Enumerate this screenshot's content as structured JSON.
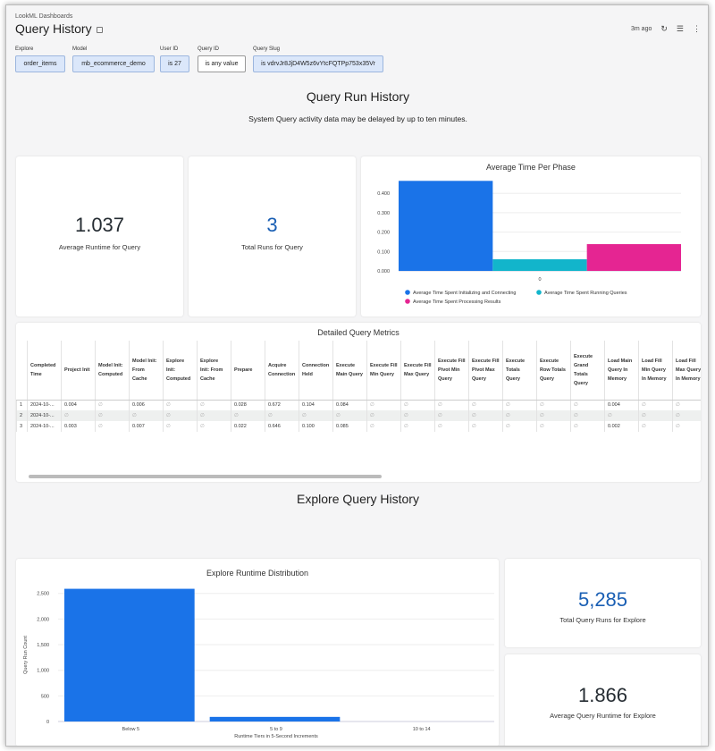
{
  "header": {
    "breadcrumb": "LookML Dashboards",
    "title": "Query History",
    "updated": "3m ago"
  },
  "filters": [
    {
      "label": "Explore",
      "value": "order_items"
    },
    {
      "label": "Model",
      "value": "mb_ecommerce_demo"
    },
    {
      "label": "User ID",
      "value": "is 27"
    },
    {
      "label": "Query ID",
      "value": "is any value"
    },
    {
      "label": "Query Slug",
      "value": "is vdrvJr8JjD4W5z6vYtcFQTPp753x35Vr"
    }
  ],
  "query_run_history": {
    "title": "Query Run History",
    "note": "System Query activity data may be delayed by up to ten minutes.",
    "avg_runtime": {
      "value": "1.037",
      "label": "Average Runtime for Query"
    },
    "total_runs": {
      "value": "3",
      "label": "Total Runs for Query"
    }
  },
  "table": {
    "title": "Detailed Query Metrics",
    "columns": [
      "Completed Time",
      "Project Init",
      "Model Init: Computed",
      "Model Init: From Cache",
      "Explore Init: Computed",
      "Explore Init: From Cache",
      "Prepare",
      "Acquire Connection",
      "Connection Held",
      "Execute Main Query",
      "Execute Fill Min Query",
      "Execute Fill Max Query",
      "Execute Fill Pivot Min Query",
      "Execute Fill Pivot Max Query",
      "Execute Totals Query",
      "Execute Row Totals Query",
      "Execute Grand Totals Query",
      "Load Main Query In Memory",
      "Load Fill Min Query In Memory",
      "Load Fill Max Query In Memory"
    ],
    "rows": [
      [
        "1",
        "2024-10-...",
        "0.004",
        "∅",
        "0.006",
        "∅",
        "∅",
        "0.028",
        "0.672",
        "0.104",
        "0.084",
        "∅",
        "∅",
        "∅",
        "∅",
        "∅",
        "∅",
        "∅",
        "0.004",
        "∅",
        "∅"
      ],
      [
        "2",
        "2024-10-...",
        "∅",
        "∅",
        "∅",
        "∅",
        "∅",
        "∅",
        "∅",
        "∅",
        "∅",
        "∅",
        "∅",
        "∅",
        "∅",
        "∅",
        "∅",
        "∅",
        "∅",
        "∅",
        "∅"
      ],
      [
        "3",
        "2024-10-...",
        "0.003",
        "∅",
        "0.007",
        "∅",
        "∅",
        "0.022",
        "0.646",
        "0.100",
        "0.085",
        "∅",
        "∅",
        "∅",
        "∅",
        "∅",
        "∅",
        "∅",
        "0.002",
        "∅",
        "∅"
      ]
    ]
  },
  "explore_section": {
    "title": "Explore Query History",
    "total_runs": {
      "value": "5,285",
      "label": "Total Query Runs for Explore"
    },
    "avg_runtime": {
      "value": "1.866",
      "label": "Average Query Runtime for Explore"
    }
  },
  "colors": {
    "blue": "#1a73e8",
    "teal": "#12b5cb",
    "pink": "#e52592",
    "value_blue": "#1a5fb4"
  },
  "chart_data": [
    {
      "type": "bar",
      "title": "Average Time Per Phase",
      "categories": [
        "0"
      ],
      "ylim": [
        0,
        0.47
      ],
      "yticks": [
        "0.000",
        "0.100",
        "0.200",
        "0.300",
        "0.400"
      ],
      "grid": true,
      "legend": "bottom",
      "series": [
        {
          "name": "Average Time Spent Initializing and Connecting",
          "values": [
            0.464
          ],
          "color": "#1a73e8"
        },
        {
          "name": "Average Time Spent Running Queries",
          "values": [
            0.06
          ],
          "color": "#12b5cb"
        },
        {
          "name": "Average Time Spent Processing Results",
          "values": [
            0.138
          ],
          "color": "#e52592"
        }
      ]
    },
    {
      "type": "bar",
      "title": "Explore Runtime Distribution",
      "categories": [
        "Below 5",
        "5 to 9",
        "10 to 14"
      ],
      "values": [
        2590,
        90,
        0
      ],
      "ylim": [
        0,
        2600
      ],
      "yticks": [
        "0",
        "500",
        "1,000",
        "1,500",
        "2,000",
        "2,500"
      ],
      "xlabel": "Runtime Tiers in 5-Second Increments",
      "ylabel": "Query Run Count",
      "grid": true,
      "color": "#1a73e8"
    }
  ]
}
